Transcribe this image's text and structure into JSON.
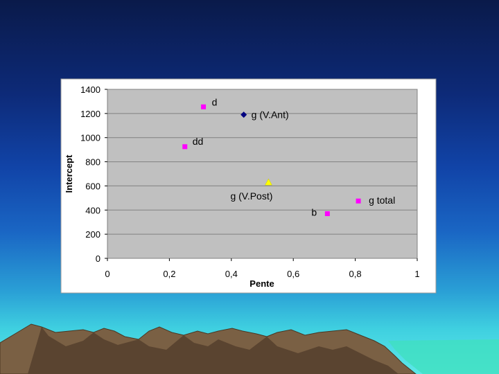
{
  "chart_data": {
    "type": "scatter",
    "title": "",
    "xlabel": "Pente",
    "ylabel": "Intercept",
    "xlim": [
      0,
      1
    ],
    "ylim": [
      0,
      1400
    ],
    "x_ticks": [
      "0",
      "0,2",
      "0,4",
      "0,6",
      "0,8",
      "1"
    ],
    "y_ticks": [
      "0",
      "200",
      "400",
      "600",
      "800",
      "1000",
      "1200",
      "1400"
    ],
    "grid": "horizontal",
    "legend": "none",
    "points": [
      {
        "label": "d",
        "x": 0.31,
        "y": 1255,
        "marker": "square",
        "color": "#ff00ff"
      },
      {
        "label": "g (V.Ant)",
        "x": 0.44,
        "y": 1190,
        "marker": "diamond",
        "color": "#000080"
      },
      {
        "label": "dd",
        "x": 0.25,
        "y": 925,
        "marker": "square",
        "color": "#ff00ff"
      },
      {
        "label": "g (V.Post)",
        "x": 0.52,
        "y": 630,
        "marker": "triangle",
        "color": "#ffff00"
      },
      {
        "label": "g total",
        "x": 0.81,
        "y": 475,
        "marker": "square",
        "color": "#ff00ff"
      },
      {
        "label": "b",
        "x": 0.71,
        "y": 370,
        "marker": "square",
        "color": "#ff00ff"
      }
    ],
    "colors": {
      "plot_area": "#c0c0c0",
      "chart_area": "#ffffff",
      "gridline": "#808080"
    }
  }
}
